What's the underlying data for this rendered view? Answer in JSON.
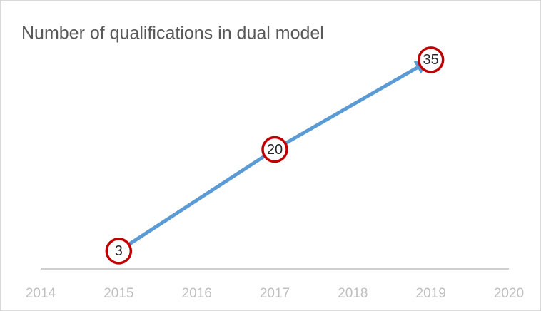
{
  "chart_data": {
    "type": "line",
    "title": "Number of qualifications in dual model",
    "x": [
      2015,
      2017,
      2019
    ],
    "values": [
      3,
      20,
      35
    ],
    "xlim": [
      2014,
      2020
    ],
    "xticks": [
      2014,
      2015,
      2016,
      2017,
      2018,
      2019,
      2020
    ],
    "ylim": [
      0,
      40
    ],
    "color": "#5b9bd5",
    "marker_color": "#c00000"
  }
}
